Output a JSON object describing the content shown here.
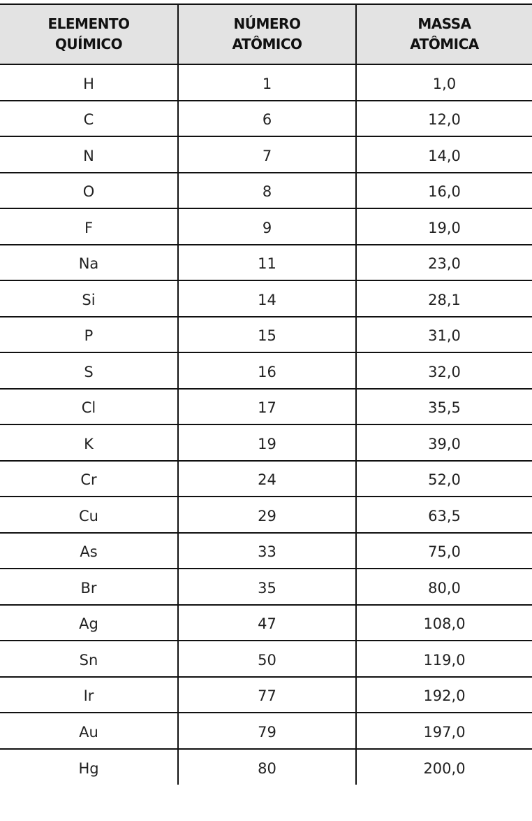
{
  "headers": [
    "ELEMENTO\nQUÍMICO",
    "NÚMERO\nATÔMICO",
    "MASSA\nATÔMICA"
  ],
  "rows": [
    [
      "H",
      "1",
      "1,0"
    ],
    [
      "C",
      "6",
      "12,0"
    ],
    [
      "N",
      "7",
      "14,0"
    ],
    [
      "O",
      "8",
      "16,0"
    ],
    [
      "F",
      "9",
      "19,0"
    ],
    [
      "Na",
      "11",
      "23,0"
    ],
    [
      "Si",
      "14",
      "28,1"
    ],
    [
      "P",
      "15",
      "31,0"
    ],
    [
      "S",
      "16",
      "32,0"
    ],
    [
      "Cl",
      "17",
      "35,5"
    ],
    [
      "K",
      "19",
      "39,0"
    ],
    [
      "Cr",
      "24",
      "52,0"
    ],
    [
      "Cu",
      "29",
      "63,5"
    ],
    [
      "As",
      "33",
      "75,0"
    ],
    [
      "Br",
      "35",
      "80,0"
    ],
    [
      "Ag",
      "47",
      "108,0"
    ],
    [
      "Sn",
      "50",
      "119,0"
    ],
    [
      "Ir",
      "77",
      "192,0"
    ],
    [
      "Au",
      "79",
      "197,0"
    ],
    [
      "Hg",
      "80",
      "200,0"
    ]
  ]
}
